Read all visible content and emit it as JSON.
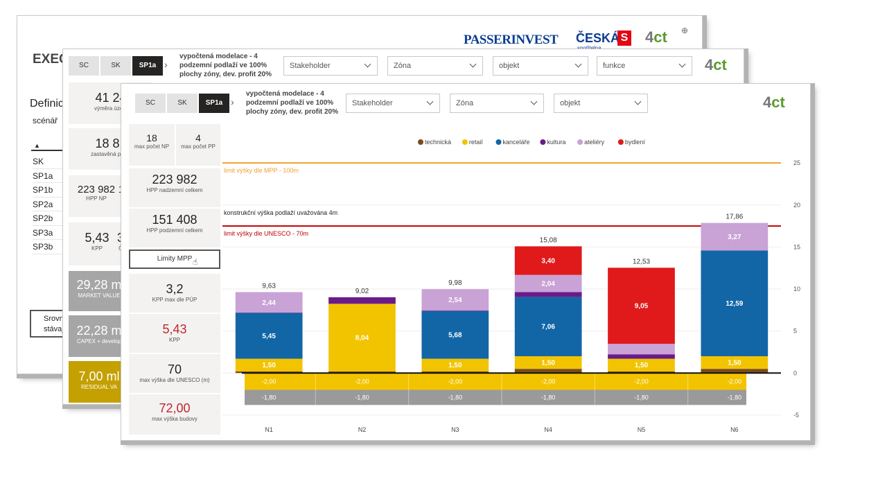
{
  "win1": {
    "title": "EXEC",
    "definice": "Definic",
    "scenar": "scénář",
    "sort_arrow": "▲",
    "scenarios": [
      "SK",
      "SP1a",
      "SP1b",
      "SP2a",
      "SP2b",
      "SP3a",
      "SP3b"
    ],
    "compare_button": "Srovna stávající",
    "logos": {
      "passerinvest": "PASSERINVEST",
      "ceska": "ČESKÁ",
      "ceska_sub": "spořitelna",
      "ceska_mark": "S",
      "four": "4",
      "ct": "ct",
      "globe_icon": "globe-icon"
    }
  },
  "win2": {
    "tabs": [
      "SC",
      "SK",
      "SP1a"
    ],
    "active_tab": "SP1a",
    "description": "vypočtená modelace - 4 podzemní podlaží ve 100% plochy zóny, dev. profit 20%",
    "dropdowns": [
      "Stakeholder",
      "Zóna",
      "objekt",
      "funkce"
    ],
    "cards": [
      {
        "value": "41 24",
        "label": "výměra územ"
      },
      {
        "value": "18 81",
        "label": "zastavěná ploch"
      },
      {
        "value": "223 982",
        "label": "HPP NP"
      },
      {
        "value": "1",
        "label": ""
      },
      {
        "value": "5,43",
        "label": "KPP"
      },
      {
        "value": "3",
        "label": "Č"
      },
      {
        "value": "29,28 m",
        "label": "MARKET VALUE"
      },
      {
        "value": "22,28 m",
        "label": "CAPEX + develop"
      },
      {
        "value": "7,00 ml",
        "label": "RESIDUAL VA"
      }
    ]
  },
  "win3": {
    "tabs": [
      "SC",
      "SK",
      "SP1a"
    ],
    "active_tab": "SP1a",
    "description": "vypočtená modelace - 4 podzemní podlaží ve 100% plochy zóny, dev. profit 20%",
    "dropdowns": [
      "Stakeholder",
      "Zóna",
      "objekt"
    ],
    "cards": {
      "max_np": {
        "value": "18",
        "label": "max počet NP"
      },
      "max_pp": {
        "value": "4",
        "label": "max počet PP"
      },
      "hpp_nad": {
        "value": "223 982",
        "label": "HPP nadzemní celkem"
      },
      "hpp_pod": {
        "value": "151 408",
        "label": "HPP podzemní celkem"
      },
      "limity_button": "Limity MPP",
      "kpp_max": {
        "value": "3,2",
        "label": "KPP max dle PÚP"
      },
      "kpp": {
        "value": "5,43",
        "label": "KPP"
      },
      "unesco": {
        "value": "70",
        "label": "max výška dle UNESCO (m)"
      },
      "max_vyska": {
        "value": "72,00",
        "label": "max výška budovy"
      }
    }
  },
  "chart_data": {
    "type": "bar",
    "stacked": true,
    "categories": [
      "N1",
      "N2",
      "N3",
      "N4",
      "N5",
      "N6"
    ],
    "legend": [
      {
        "name": "technická",
        "color": "#7a4b1a"
      },
      {
        "name": "retail",
        "color": "#f2c400"
      },
      {
        "name": "kanceláře",
        "color": "#1266a6"
      },
      {
        "name": "kultura",
        "color": "#6a1b8a"
      },
      {
        "name": "ateliéry",
        "color": "#c9a2d6"
      },
      {
        "name": "bydlení",
        "color": "#e01a1a"
      }
    ],
    "series": [
      {
        "name": "technická",
        "values": [
          0.2,
          0.2,
          0.2,
          0.5,
          0.2,
          0.5
        ]
      },
      {
        "name": "retail",
        "values": [
          1.5,
          8.04,
          1.5,
          1.5,
          1.5,
          1.5
        ]
      },
      {
        "name": "kanceláře",
        "values": [
          5.45,
          0,
          5.68,
          7.06,
          0,
          12.59
        ]
      },
      {
        "name": "kultura",
        "values": [
          0.04,
          0.78,
          0.06,
          0.58,
          0.53,
          0
        ]
      },
      {
        "name": "ateliéry",
        "values": [
          2.44,
          0,
          2.54,
          2.04,
          1.25,
          3.27
        ]
      },
      {
        "name": "bydlení",
        "values": [
          0,
          0,
          0,
          3.4,
          9.05,
          0
        ]
      }
    ],
    "segment_labels": [
      [
        "",
        "1,50",
        "5,45",
        "",
        "2,44",
        ""
      ],
      [
        "",
        "8,04",
        "",
        "",
        "",
        ""
      ],
      [
        "",
        "1,50",
        "5,68",
        "",
        "2,54",
        ""
      ],
      [
        "",
        "1,50",
        "7,06",
        "",
        "2,04",
        "3,40"
      ],
      [
        "",
        "1,50",
        "",
        "",
        "",
        "9,05"
      ],
      [
        "",
        "1,50",
        "12,59",
        "",
        "3,27",
        ""
      ]
    ],
    "totals": [
      "9,63",
      "9,02",
      "9,98",
      "15,08",
      "12,53",
      "17,86"
    ],
    "underground": [
      {
        "name": "retail",
        "value": -2.0,
        "label": "-2,00",
        "color": "#f2c400"
      },
      {
        "name": "technická",
        "value": -1.8,
        "label": "-1,80",
        "color": "#9a9a9a"
      }
    ],
    "reference_lines": [
      {
        "label": "limit výšky dle MPP - 100m",
        "value": 25,
        "color": "#f2a12e"
      },
      {
        "label": "konstrukční výška podlaží uvažována 4m",
        "value": 20,
        "color": "#e6e6e6"
      },
      {
        "label": "limit výšky dle UNESCO - 70m",
        "value": 17.5,
        "color": "#c00000"
      }
    ],
    "y_ticks": [
      25,
      20,
      15,
      10,
      5,
      0,
      -5
    ],
    "ylim": [
      -6,
      26
    ]
  }
}
